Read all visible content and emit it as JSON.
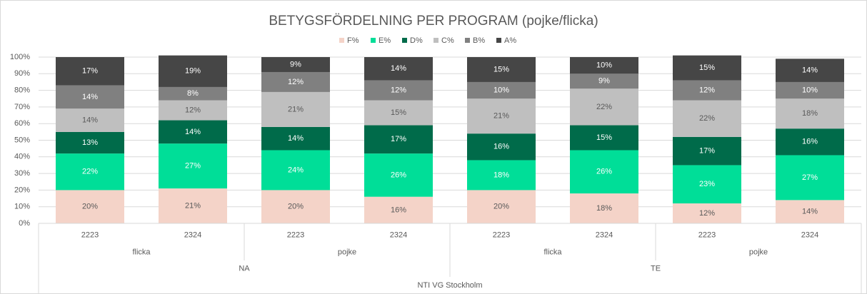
{
  "chart_data": {
    "type": "stacked_bar",
    "title": "BETYGSFÖRDELNING PER PROGRAM (pojke/flicka)",
    "categories": [
      "2223",
      "2324",
      "2223",
      "2324",
      "2223",
      "2324",
      "2223",
      "2324"
    ],
    "groups": [
      [
        "flicka",
        "pojke",
        "flicka",
        "pojke"
      ],
      [
        "NA",
        "TE"
      ],
      [
        "NTI VG Stockholm"
      ]
    ],
    "series": [
      {
        "name": "F%",
        "color": "#f4d3c8",
        "label_color": "#595959",
        "values": [
          20,
          21,
          20,
          16,
          20,
          18,
          12,
          14
        ],
        "value_labels": [
          "20%",
          "21%",
          "20%",
          "16%",
          "20%",
          "18%",
          "12%",
          "14%"
        ]
      },
      {
        "name": "E%",
        "color": "#00de98",
        "label_color": "#ffffff",
        "values": [
          22,
          27,
          24,
          26,
          18,
          26,
          23,
          27
        ],
        "value_labels": [
          "22%",
          "27%",
          "24%",
          "26%",
          "18%",
          "26%",
          "23%",
          "27%"
        ]
      },
      {
        "name": "D%",
        "color": "#006b4a",
        "label_color": "#ffffff",
        "values": [
          13,
          14,
          14,
          17,
          16,
          15,
          17,
          16
        ],
        "value_labels": [
          "13%",
          "14%",
          "14%",
          "17%",
          "16%",
          "15%",
          "17%",
          "16%"
        ]
      },
      {
        "name": "C%",
        "color": "#bfbfbf",
        "label_color": "#595959",
        "values": [
          14,
          12,
          21,
          15,
          21,
          22,
          22,
          18
        ],
        "value_labels": [
          "14%",
          "12%",
          "21%",
          "15%",
          "21%",
          "22%",
          "22%",
          "18%"
        ]
      },
      {
        "name": "B%",
        "color": "#808080",
        "label_color": "#ffffff",
        "values": [
          14,
          8,
          12,
          12,
          10,
          9,
          12,
          10
        ],
        "value_labels": [
          "14%",
          "8%",
          "12%",
          "12%",
          "10%",
          "9%",
          "12%",
          "10%"
        ]
      },
      {
        "name": "A%",
        "color": "#464646",
        "label_color": "#ffffff",
        "values": [
          17,
          19,
          9,
          14,
          15,
          10,
          15,
          14
        ],
        "value_labels": [
          "17%",
          "19%",
          "9%",
          "14%",
          "15%",
          "10%",
          "15%",
          "14%"
        ]
      }
    ],
    "ylim": [
      0,
      100
    ],
    "yticks": [
      {
        "value": 0,
        "label": "0%"
      },
      {
        "value": 10,
        "label": "10%"
      },
      {
        "value": 20,
        "label": "20%"
      },
      {
        "value": 30,
        "label": "30%"
      },
      {
        "value": 40,
        "label": "40%"
      },
      {
        "value": 50,
        "label": "50%"
      },
      {
        "value": 60,
        "label": "60%"
      },
      {
        "value": 70,
        "label": "70%"
      },
      {
        "value": 80,
        "label": "80%"
      },
      {
        "value": 90,
        "label": "90%"
      },
      {
        "value": 100,
        "label": "100%"
      }
    ],
    "grid": true,
    "legend": "top"
  }
}
